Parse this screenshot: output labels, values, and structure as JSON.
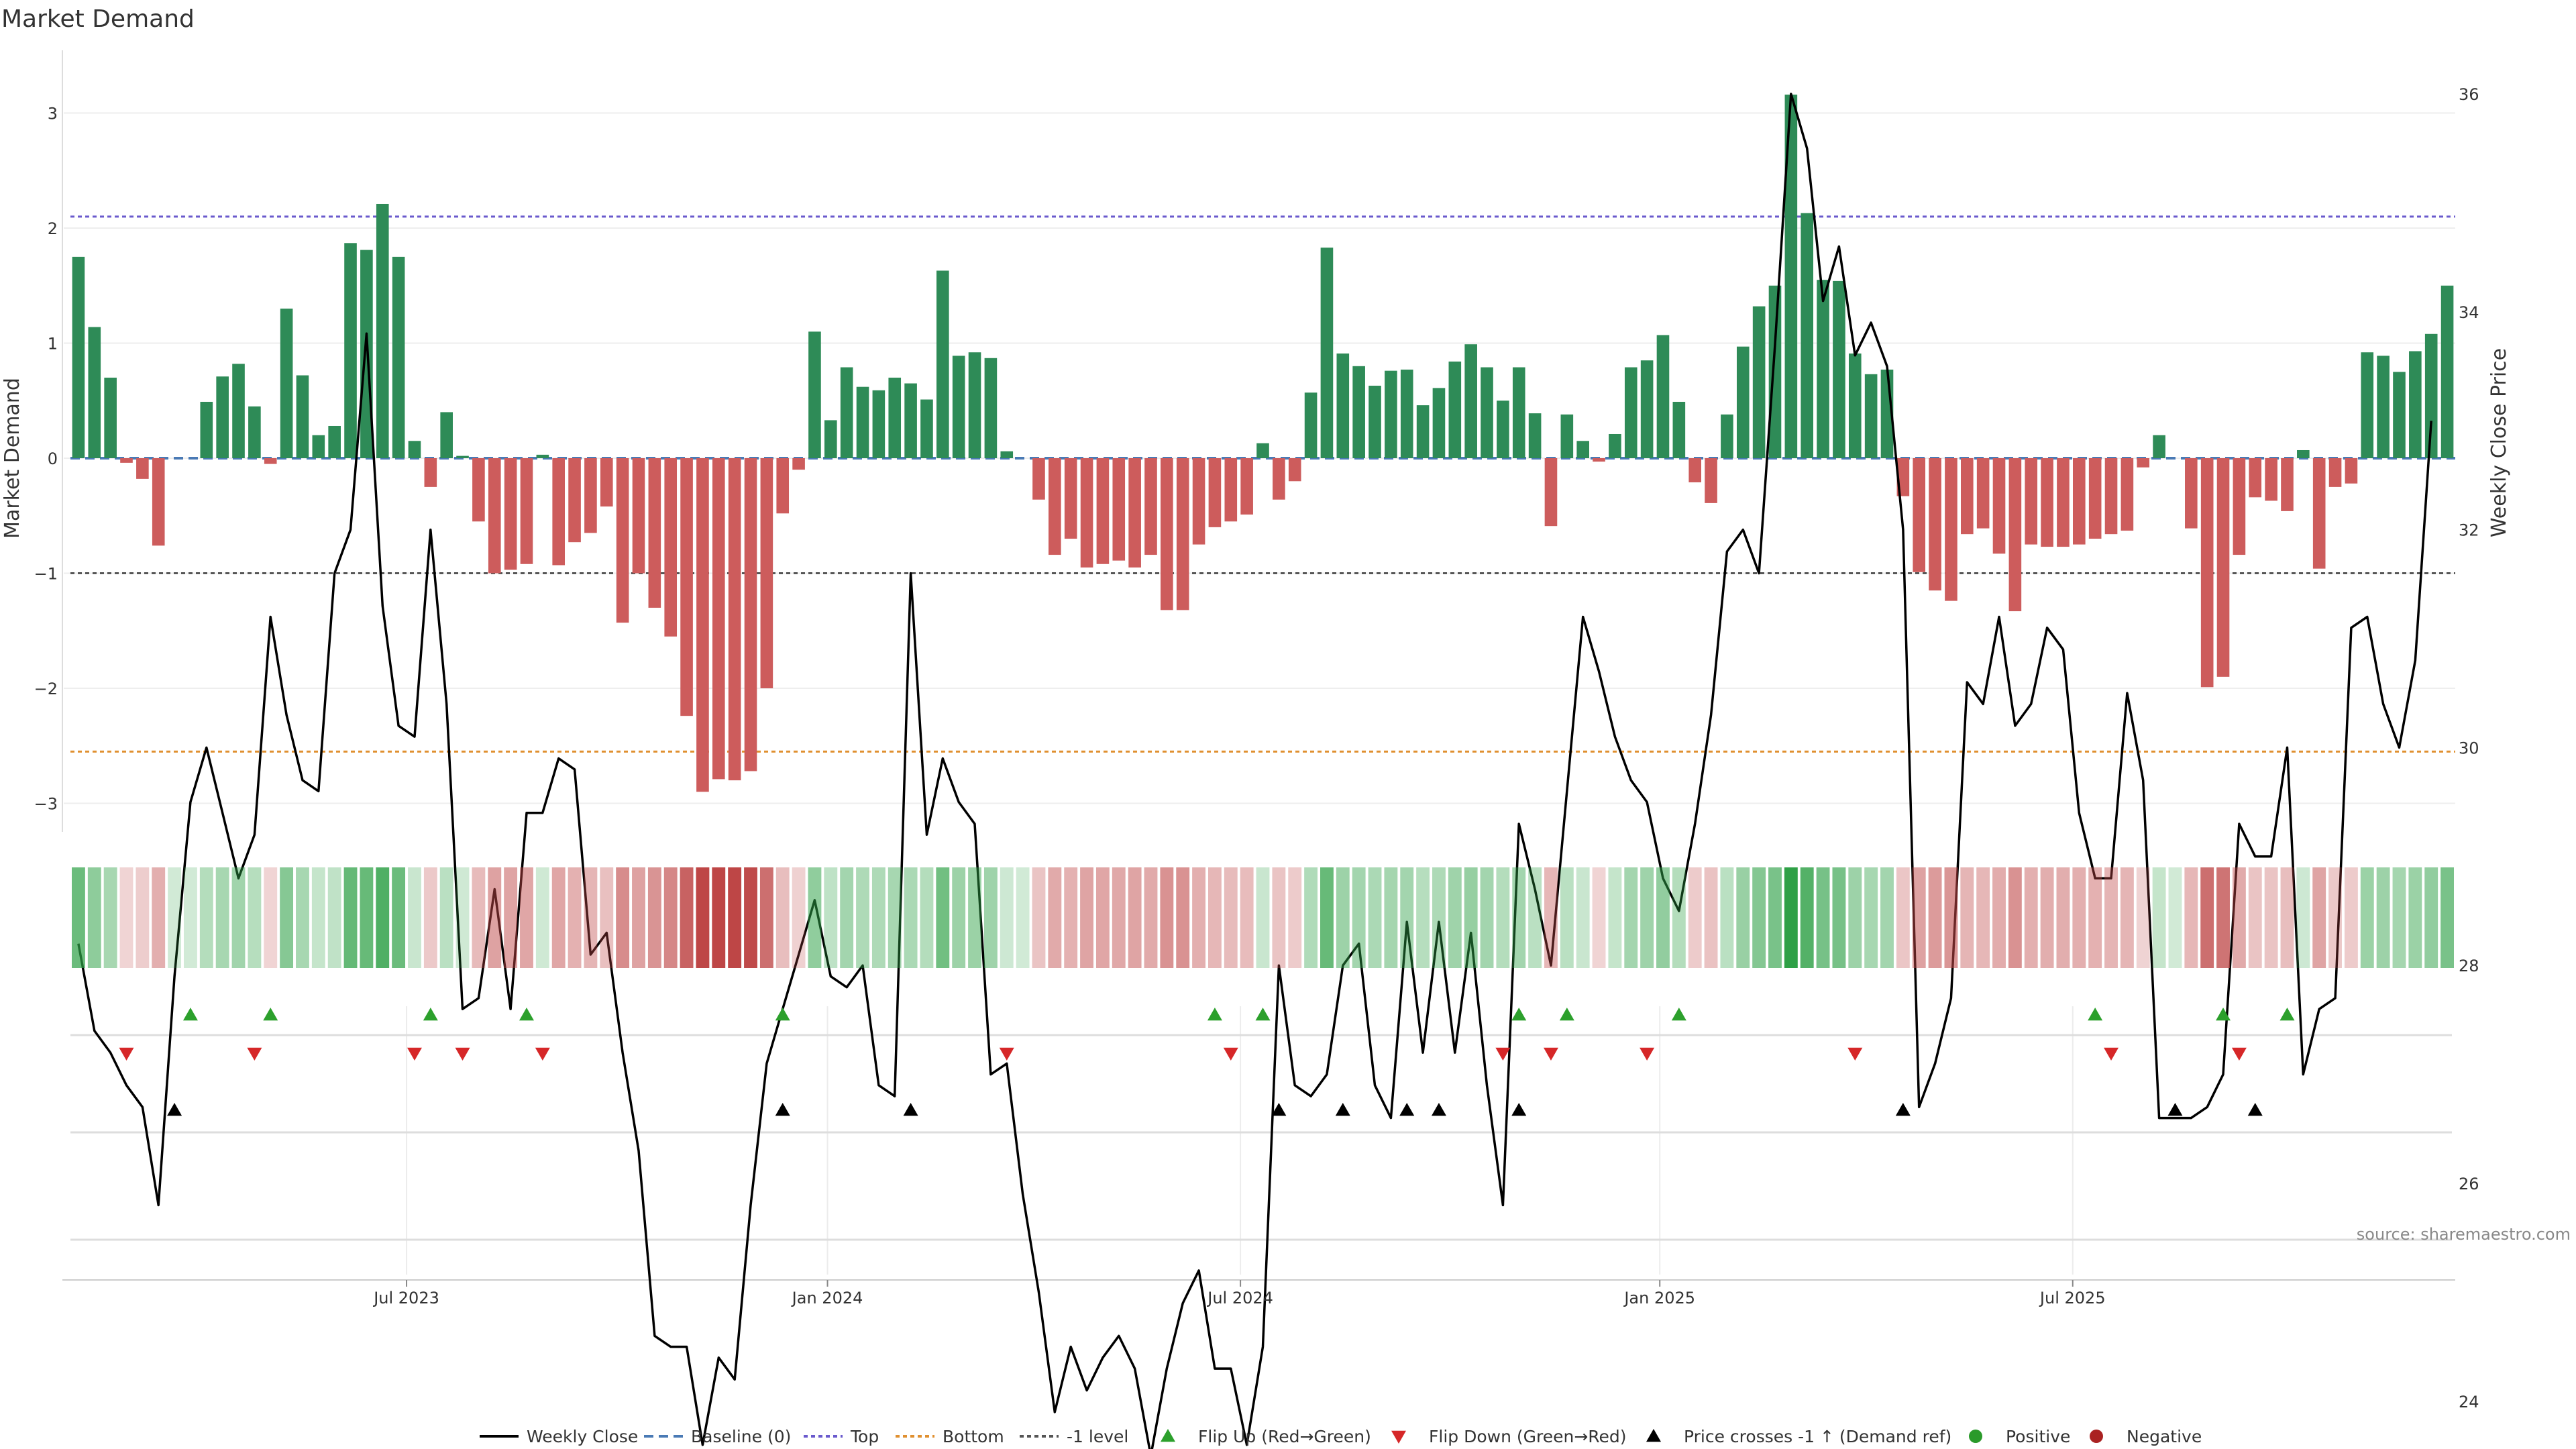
{
  "chart_data": {
    "type": "bar",
    "title": "Market Demand",
    "ylabel": "Market Demand",
    "y2label": "Weekly Close Price",
    "ylim": [
      -3.2,
      3.4
    ],
    "y2lim": [
      23.0,
      36.5
    ],
    "yticks": [
      -3,
      -2,
      -1,
      0,
      1,
      2,
      3
    ],
    "y2ticks": [
      24,
      26,
      28,
      30,
      32,
      34,
      36
    ],
    "reference_lines": {
      "top": 2.1,
      "bottom": -2.55,
      "minus_one": -1.0,
      "baseline": 0
    },
    "x_tick_labels": [
      {
        "label": "Jul 2023",
        "week": 20.5
      },
      {
        "label": "Jan 2024",
        "week": 46.8
      },
      {
        "label": "Jul 2024",
        "week": 72.6
      },
      {
        "label": "Jan 2025",
        "week": 98.8
      },
      {
        "label": "Jul 2025",
        "week": 124.6
      }
    ],
    "demand": [
      1.75,
      1.14,
      0.7,
      -0.04,
      -0.18,
      -0.76,
      0.0,
      0.0,
      0.49,
      0.71,
      0.82,
      0.45,
      -0.05,
      1.3,
      0.72,
      0.2,
      0.28,
      1.87,
      1.81,
      2.21,
      1.75,
      0.15,
      -0.25,
      0.4,
      0.02,
      -0.55,
      -1.0,
      -0.97,
      -0.92,
      0.03,
      -0.93,
      -0.73,
      -0.65,
      -0.42,
      -1.43,
      -1.0,
      -1.3,
      -1.55,
      -2.24,
      -2.9,
      -2.79,
      -2.8,
      -2.72,
      -2.0,
      -0.48,
      -0.1,
      1.1,
      0.33,
      0.79,
      0.62,
      0.59,
      0.7,
      0.65,
      0.51,
      1.63,
      0.89,
      0.92,
      0.87,
      0.06,
      0.0,
      -0.36,
      -0.84,
      -0.7,
      -0.95,
      -0.92,
      -0.89,
      -0.95,
      -0.84,
      -1.32,
      -1.32,
      -0.75,
      -0.6,
      -0.55,
      -0.49,
      0.13,
      -0.36,
      -0.2,
      0.57,
      1.83,
      0.91,
      0.8,
      0.63,
      0.76,
      0.77,
      0.46,
      0.61,
      0.84,
      0.99,
      0.79,
      0.5,
      0.79,
      0.39,
      -0.59,
      0.38,
      0.15,
      -0.03,
      0.21,
      0.79,
      0.85,
      1.07,
      0.49,
      -0.21,
      -0.39,
      0.38,
      0.97,
      1.32,
      1.5,
      3.16,
      2.13,
      1.55,
      1.54,
      0.91,
      0.73,
      0.77,
      -0.33,
      -0.99,
      -1.15,
      -1.24,
      -0.66,
      -0.61,
      -0.83,
      -1.33,
      -0.75,
      -0.77,
      -0.77,
      -0.75,
      -0.7,
      -0.66,
      -0.63,
      -0.08,
      0.2,
      0.0,
      -0.61,
      -1.99,
      -1.9,
      -0.84,
      -0.34,
      -0.37,
      -0.46,
      0.07,
      -0.96,
      -0.25,
      -0.22,
      0.92,
      0.89,
      0.75,
      0.93,
      1.08,
      1.5
    ],
    "weekly_close": [
      28.2,
      27.4,
      27.2,
      26.9,
      26.7,
      25.8,
      27.9,
      29.5,
      30.0,
      29.4,
      28.8,
      29.2,
      31.2,
      30.3,
      29.7,
      29.6,
      31.6,
      32.0,
      33.8,
      31.3,
      30.2,
      30.1,
      32.0,
      30.4,
      27.6,
      27.7,
      28.7,
      27.6,
      29.4,
      29.4,
      29.9,
      29.8,
      28.1,
      28.3,
      27.2,
      26.3,
      24.6,
      24.5,
      24.5,
      23.6,
      24.4,
      24.2,
      25.8,
      27.1,
      27.6,
      28.1,
      28.6,
      27.9,
      27.8,
      28.0,
      26.9,
      26.8,
      31.6,
      29.2,
      29.9,
      29.5,
      29.3,
      27.0,
      27.1,
      25.9,
      25.0,
      23.9,
      24.5,
      24.1,
      24.4,
      24.6,
      24.3,
      23.5,
      24.3,
      24.9,
      25.2,
      24.3,
      24.3,
      23.6,
      24.5,
      28.0,
      26.9,
      26.8,
      27.0,
      28.0,
      28.2,
      26.9,
      26.6,
      28.4,
      27.2,
      28.4,
      27.2,
      28.3,
      26.9,
      25.8,
      29.3,
      28.7,
      28.0,
      29.6,
      31.2,
      30.7,
      30.1,
      29.7,
      29.5,
      28.8,
      28.5,
      29.3,
      30.3,
      31.8,
      32.0,
      31.6,
      33.7,
      36.0,
      35.5,
      34.1,
      34.6,
      33.6,
      33.9,
      33.5,
      32.0,
      26.7,
      27.1,
      27.7,
      30.6,
      30.4,
      31.2,
      30.2,
      30.4,
      31.1,
      30.9,
      29.4,
      28.8,
      28.8,
      30.5,
      29.7,
      26.6,
      26.6,
      26.6,
      26.7,
      27.0,
      29.3,
      29.0,
      29.0,
      30.0,
      27.0,
      27.6,
      27.7,
      31.1,
      31.2,
      30.4,
      30.0,
      30.8,
      33.0
    ],
    "flip_up_weeks": [
      7,
      12,
      22,
      28,
      44,
      71,
      74,
      90,
      93,
      100,
      126,
      134,
      138
    ],
    "flip_down_weeks": [
      3,
      11,
      21,
      24,
      29,
      58,
      72,
      89,
      92,
      98,
      111,
      127,
      135
    ],
    "price_cross_weeks": [
      6,
      44,
      52,
      75,
      79,
      83,
      85,
      90,
      114,
      131,
      136
    ],
    "legend": [
      "Weekly Close",
      "Baseline (0)",
      "Top",
      "Bottom",
      "-1 level",
      "Flip Up (Red→Green)",
      "Flip Down (Green→Red)",
      "Price crosses -1 ↑ (Demand ref)",
      "Positive",
      "Negative"
    ],
    "source": "source: sharemaestro.com",
    "colors": {
      "positive": "#2e8b57",
      "negative": "#cd5c5c",
      "line": "#000000",
      "top": "#6a5acd",
      "bottom": "#e09030",
      "minus_one": "#555555",
      "baseline": "#4a7ab5",
      "flip_up": "#2ca02c",
      "flip_down": "#d62728",
      "cross": "#000000",
      "pos_dot": "#2a9a2a",
      "neg_dot": "#aa2222"
    }
  }
}
